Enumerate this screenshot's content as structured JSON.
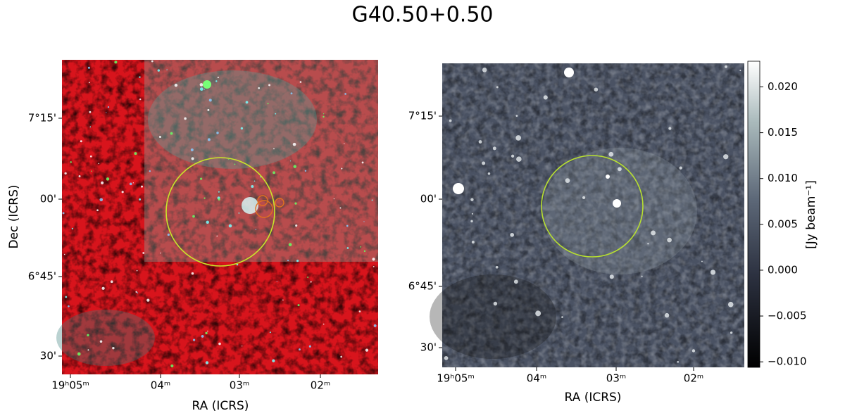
{
  "title": "G40.50+0.50",
  "left_panel": {
    "xlabel": "RA (ICRS)",
    "ylabel": "Dec (ICRS)",
    "xticks": [
      "19ʰ05ᵐ",
      "04ᵐ",
      "03ᵐ",
      "02ᵐ"
    ],
    "yticks": [
      "7°15'",
      "00'",
      "6°45'",
      "30'"
    ]
  },
  "right_panel": {
    "xlabel": "RA (ICRS)",
    "xticks": [
      "19ʰ05ᵐ",
      "04ᵐ",
      "03ᵐ",
      "02ᵐ"
    ],
    "yticks": [
      "7°15'",
      "00'",
      "6°45'",
      "30'"
    ]
  },
  "colorbar": {
    "label": "[Jy beam⁻¹]",
    "ylim": [
      -0.0106,
      0.0228
    ],
    "yticks": [
      {
        "value": -0.01,
        "label": "−0.010"
      },
      {
        "value": -0.005,
        "label": "−0.005"
      },
      {
        "value": 0,
        "label": "0.000"
      },
      {
        "value": 0.005,
        "label": "0.005"
      },
      {
        "value": 0.01,
        "label": "0.010"
      },
      {
        "value": 0.015,
        "label": "0.015"
      },
      {
        "value": 0.02,
        "label": "0.020"
      }
    ]
  }
}
